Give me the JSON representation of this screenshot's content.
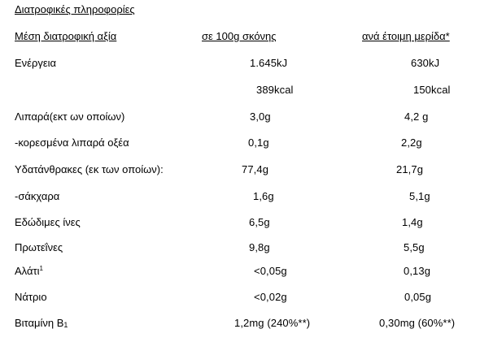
{
  "title": "Διατροφικές πληροφορίες",
  "headers": {
    "label": "Μέση διατροφική αξία",
    "per100": "σε 100g σκόνης",
    "perServing": "ανά έτοιμη μερίδα*"
  },
  "rows": [
    {
      "label": "Ενέργεια",
      "per100": "1.645kJ",
      "perServing": "630kJ"
    },
    {
      "label": "",
      "per100": "389kcal",
      "perServing": "150kcal"
    },
    {
      "label": "Λιπαρά(εκτ ων οποίων)",
      "per100": "3,0g",
      "perServing": "4,2 g"
    },
    {
      "label": "-κορεσμένα λιπαρά οξέα",
      "per100": "0,1g",
      "perServing": "2,2g"
    },
    {
      "label": "Υδατάνθρακες (εκ των οποίων):",
      "per100": "77,4g",
      "perServing": "21,7g"
    },
    {
      "label": "-σάκχαρα",
      "per100": "1,6g",
      "perServing": "5,1g"
    },
    {
      "label": "Εδώδιμες ίνες",
      "per100": "6,5g",
      "perServing": "1,4g"
    },
    {
      "label": "Πρωτεΐνες",
      "per100": "9,8g",
      "perServing": "5,5g"
    },
    {
      "label": "Αλάτι",
      "labelSup": "1",
      "per100": "<0,05g",
      "perServing": "0,13g"
    },
    {
      "label": "Νάτριο",
      "per100": "<0,02g",
      "perServing": "0,05g"
    },
    {
      "label": "Βιταμίνη Β",
      "labelSub": "1",
      "per100": "1,2mg (240%**)",
      "perServing": "0,30mg (60%**)"
    }
  ]
}
